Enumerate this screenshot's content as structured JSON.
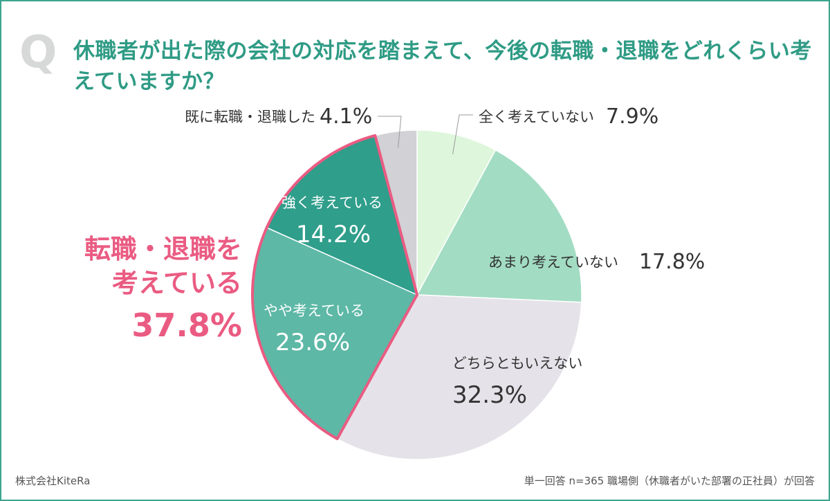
{
  "question": {
    "mark": "Q",
    "text": "休職者が出た際の会社の対応を踏まえて、今後の転職・退職をどれくらい考えていますか？"
  },
  "chart_data": {
    "type": "pie",
    "slices": [
      {
        "label": "全く考えていない",
        "value": 7.9,
        "value_text": "7.9%",
        "color": "#def7dc"
      },
      {
        "label": "あまり考えていない",
        "value": 17.8,
        "value_text": "17.8%",
        "color": "#a2dcc3"
      },
      {
        "label": "どちらともいえない",
        "value": 32.3,
        "value_text": "32.3%",
        "color": "#e5e3e9"
      },
      {
        "label": "やや考えている",
        "value": 23.6,
        "value_text": "23.6%",
        "color": "#5db8a6"
      },
      {
        "label": "強く考えている",
        "value": 14.2,
        "value_text": "14.2%",
        "color": "#2f9e8b"
      },
      {
        "label": "既に転職・退職した",
        "value": 4.1,
        "value_text": "4.1%",
        "color": "#d2d1d6"
      }
    ],
    "group_highlight": {
      "label_line1": "転職・退職を",
      "label_line2": "考えている",
      "value_text": "37.8%",
      "color": "#ea5b82"
    }
  },
  "footer": {
    "company": "株式会社KiteRa",
    "note": "単一回答 n=365 職場側（休職者がいた部署の正社員）が回答"
  },
  "colors": {
    "accent": "#2f9b85",
    "frame": "#3aa58f",
    "highlight": "#ea5b82",
    "text": "#333333"
  }
}
